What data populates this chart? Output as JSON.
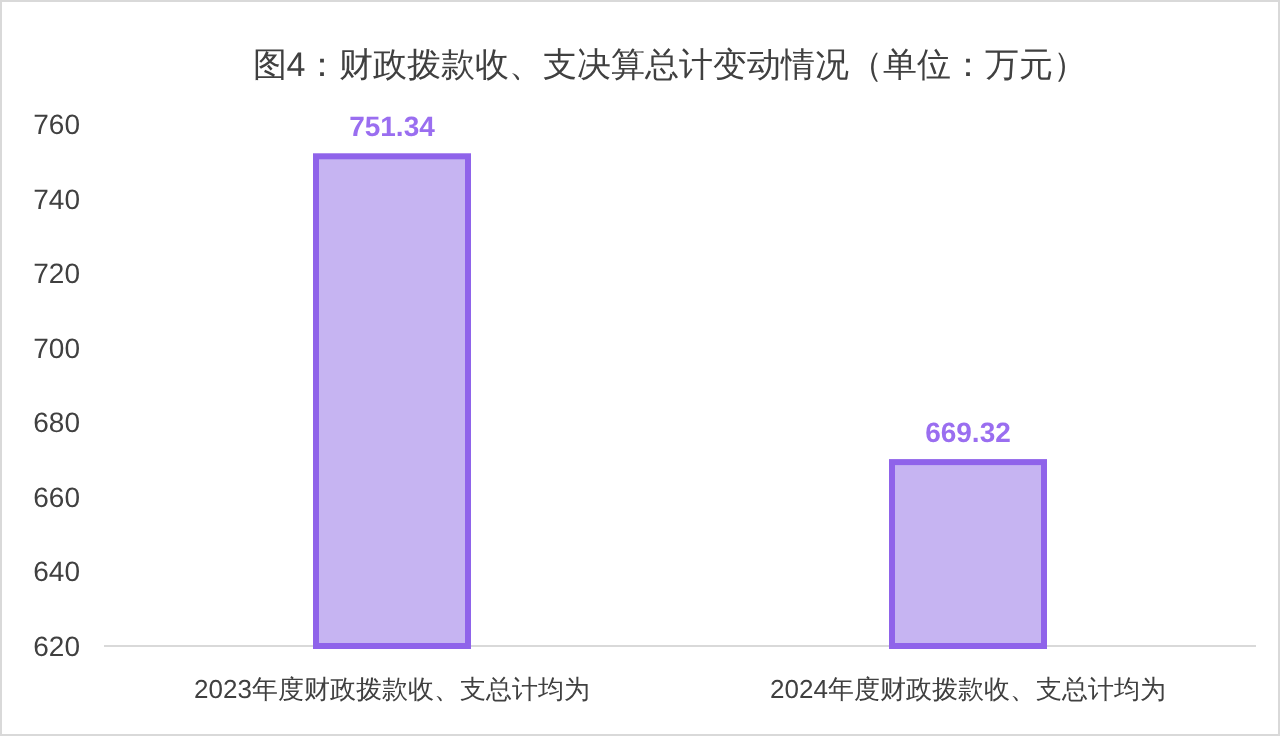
{
  "chart_data": {
    "type": "bar",
    "title": "图4：财政拨款收、支决算总计变动情况（单位：万元）",
    "categories": [
      "2023年度财政拨款收、支总计均为",
      "2024年度财政拨款收、支总计均为"
    ],
    "series": [
      {
        "color": "#c6b4f2",
        "values": [
          751.34,
          669.32
        ]
      }
    ],
    "ylim": [
      620,
      760
    ],
    "yticks": [
      620,
      640,
      660,
      680,
      700,
      720,
      740,
      760
    ],
    "data_labels": true
  }
}
